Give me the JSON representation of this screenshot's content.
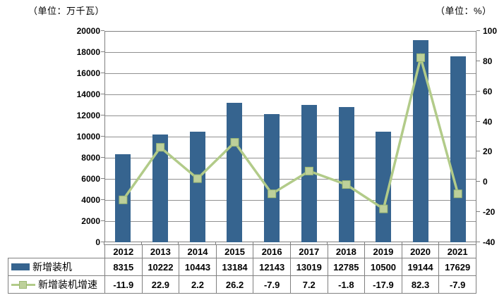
{
  "chart_data": {
    "type": "bar",
    "subtype": "combo-bar-line",
    "title": "",
    "categories": [
      "2012",
      "2013",
      "2014",
      "2015",
      "2016",
      "2017",
      "2018",
      "2019",
      "2020",
      "2021"
    ],
    "series": [
      {
        "name": "新增装机",
        "type": "bar",
        "axis": "left",
        "color": "#36648F",
        "values": [
          8315,
          10222,
          10443,
          13184,
          12143,
          13019,
          12785,
          10500,
          19144,
          17629
        ]
      },
      {
        "name": "新增装机增速",
        "type": "line",
        "axis": "right",
        "color": "#B2CB89",
        "marker_color": "#BDD09A",
        "marker_border_color": "#9CB874",
        "values": [
          -11.9,
          22.9,
          2.2,
          26.2,
          -7.9,
          7.2,
          -1.8,
          -17.9,
          82.3,
          -7.9
        ]
      }
    ],
    "left_axis": {
      "unit_label": "（单位：万千瓦）",
      "min": 0,
      "max": 20000,
      "step": 2000,
      "ticks": [
        0,
        2000,
        4000,
        6000,
        8000,
        10000,
        12000,
        14000,
        16000,
        18000,
        20000
      ]
    },
    "right_axis": {
      "unit_label": "（单位：%）",
      "min": -40,
      "max": 100,
      "step": 20,
      "ticks": [
        -40,
        -20,
        0,
        20,
        40,
        60,
        80,
        100
      ]
    },
    "grid": true,
    "gridline_color": "#909090",
    "axis_color": "#808080",
    "legend_position": "data-table-left",
    "data_table_shown": true
  }
}
